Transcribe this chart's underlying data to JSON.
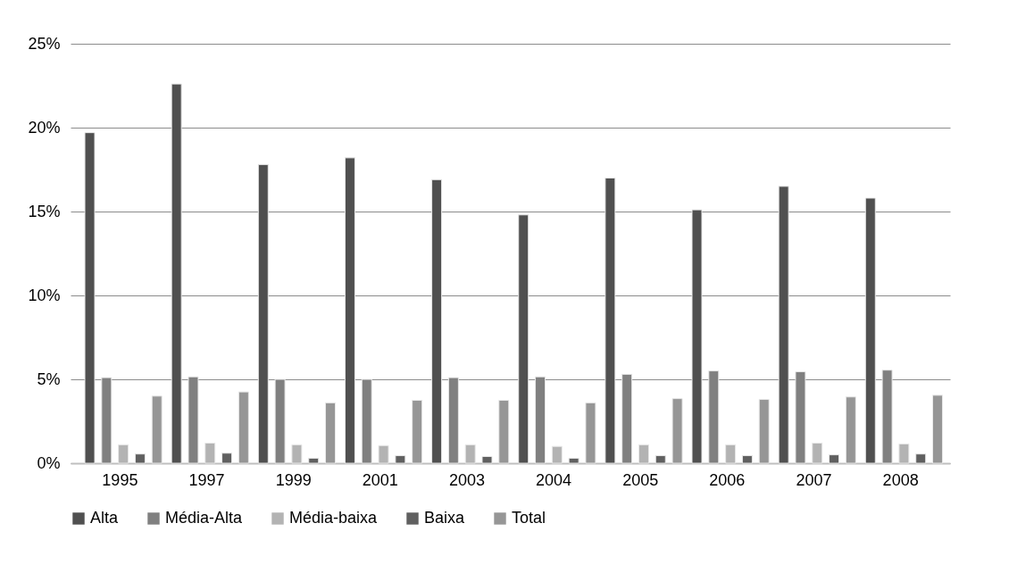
{
  "chart_data": {
    "type": "bar",
    "categories": [
      "1995",
      "1997",
      "1999",
      "2001",
      "2003",
      "2004",
      "2005",
      "2006",
      "2007",
      "2008"
    ],
    "series": [
      {
        "name": "Alta",
        "color": "#505050",
        "values": [
          19.7,
          22.6,
          17.8,
          18.2,
          16.9,
          14.8,
          17.0,
          15.1,
          16.5,
          15.8
        ]
      },
      {
        "name": "Média-Alta",
        "color": "#808080",
        "values": [
          5.1,
          5.15,
          5.0,
          5.0,
          5.1,
          5.15,
          5.3,
          5.5,
          5.45,
          5.55
        ]
      },
      {
        "name": "Média-baixa",
        "color": "#b3b3b3",
        "values": [
          1.1,
          1.2,
          1.1,
          1.05,
          1.1,
          1.0,
          1.1,
          1.1,
          1.2,
          1.15
        ]
      },
      {
        "name": "Baixa",
        "color": "#606060",
        "values": [
          0.55,
          0.6,
          0.3,
          0.45,
          0.4,
          0.3,
          0.45,
          0.45,
          0.5,
          0.55
        ]
      },
      {
        "name": "Total",
        "color": "#969696",
        "values": [
          4.0,
          4.25,
          3.6,
          3.75,
          3.75,
          3.6,
          3.85,
          3.8,
          3.95,
          4.05
        ]
      }
    ],
    "ylim": [
      0,
      25
    ],
    "yticks": [
      {
        "value": 0,
        "label": "0%"
      },
      {
        "value": 5,
        "label": "5%"
      },
      {
        "value": 10,
        "label": "10%"
      },
      {
        "value": 15,
        "label": "15%"
      },
      {
        "value": 20,
        "label": "20%"
      },
      {
        "value": 25,
        "label": "25%"
      }
    ],
    "grid": "y",
    "legend": "bottom"
  }
}
